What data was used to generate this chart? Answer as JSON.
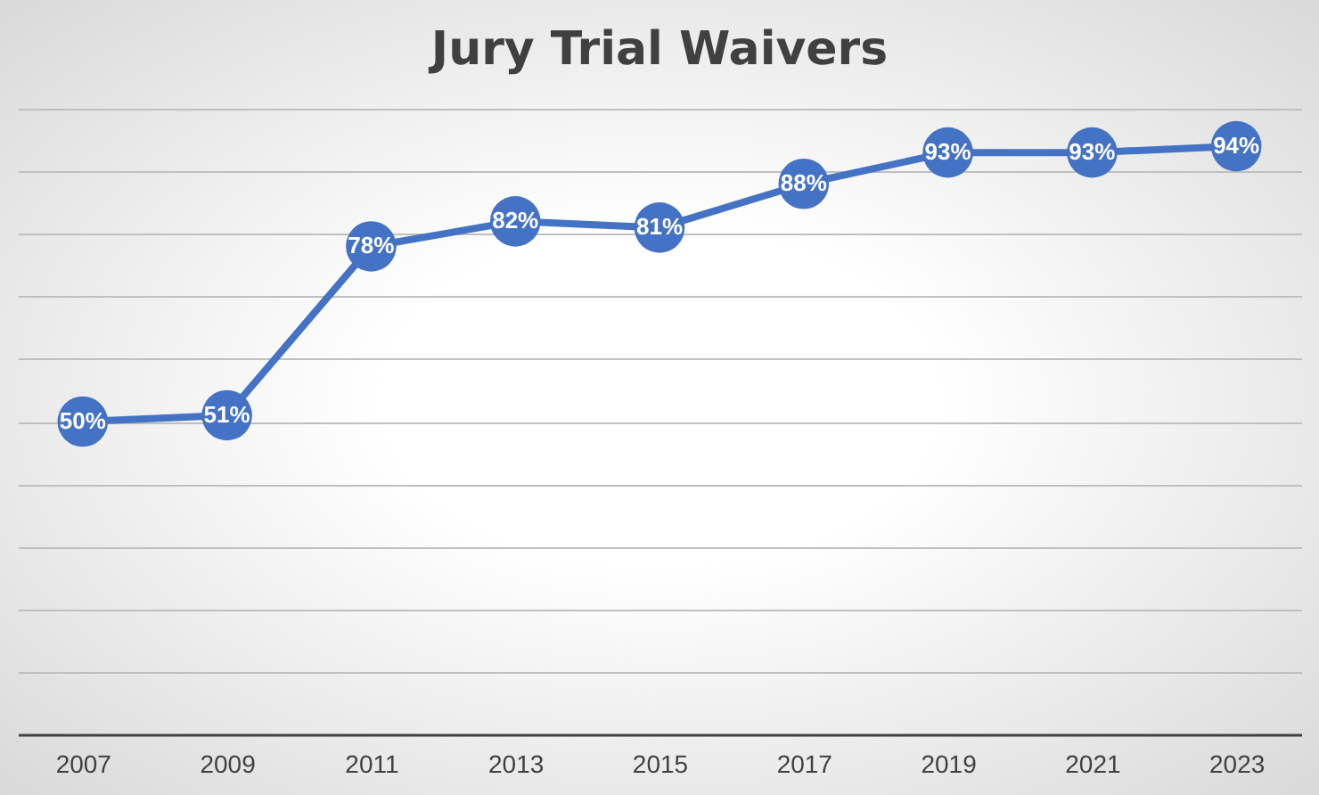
{
  "chart_data": {
    "type": "line",
    "title": "Jury Trial Waivers",
    "categories": [
      "2007",
      "2009",
      "2011",
      "2013",
      "2015",
      "2017",
      "2019",
      "2021",
      "2023"
    ],
    "series": [
      {
        "color": "#4472c4",
        "values": [
          50,
          51,
          78,
          82,
          81,
          88,
          93,
          93,
          94
        ],
        "value_labels": [
          "50%",
          "51%",
          "78%",
          "82%",
          "81%",
          "88%",
          "93%",
          "93%",
          "94%"
        ]
      }
    ],
    "ylim": [
      0,
      100
    ],
    "yticks": [
      {
        "value": 0,
        "label": null
      },
      {
        "value": 10,
        "label": null
      },
      {
        "value": 20,
        "label": null
      },
      {
        "value": 30,
        "label": null
      },
      {
        "value": 40,
        "label": null
      },
      {
        "value": 50,
        "label": null
      },
      {
        "value": 60,
        "label": null
      },
      {
        "value": 70,
        "label": null
      },
      {
        "value": 80,
        "label": null
      },
      {
        "value": 90,
        "label": null
      },
      {
        "value": 100,
        "label": null
      }
    ],
    "grid": "y",
    "marker": "circle",
    "line_style": "solid",
    "tick_labels": "x"
  }
}
